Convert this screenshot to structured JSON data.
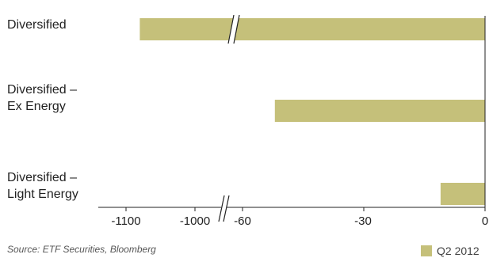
{
  "chart_data": {
    "type": "bar",
    "orientation": "horizontal",
    "categories": [
      "Diversified",
      "Diversified –\nEx Energy",
      "Diversified –\nLight Energy"
    ],
    "series": [
      {
        "name": "Q2 2012",
        "values": [
          -1080,
          -52,
          -11
        ],
        "color": "#c5c07a"
      }
    ],
    "x_ticks": [
      "-1100",
      "-1000",
      "-60",
      "-30",
      "0"
    ],
    "axis_break": {
      "between": [
        "-1000",
        "-60"
      ]
    },
    "xlim": [
      -1100,
      0
    ],
    "grid": false,
    "legend_position": "bottom-right",
    "source": "Source: ETF Securities, Bloomberg"
  }
}
